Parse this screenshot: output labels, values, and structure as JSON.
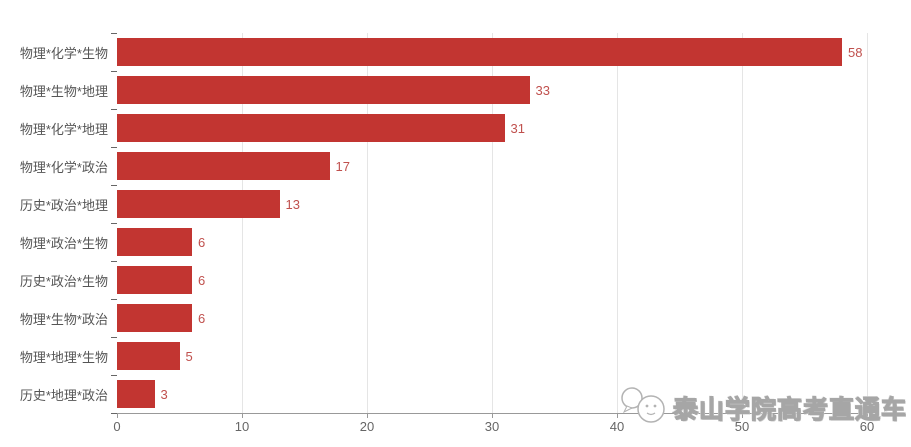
{
  "chart_data": {
    "type": "bar",
    "orientation": "horizontal",
    "title": "",
    "xlabel": "",
    "ylabel": "",
    "categories": [
      "物理*化学*生物",
      "物理*生物*地理",
      "物理*化学*地理",
      "物理*化学*政治",
      "历史*政治*地理",
      "物理*政治*生物",
      "历史*政治*生物",
      "物理*生物*政治",
      "物理*地理*生物",
      "历史*地理*政治"
    ],
    "values": [
      58,
      33,
      31,
      17,
      13,
      6,
      6,
      6,
      5,
      3
    ],
    "xticks": [
      0,
      10,
      20,
      30,
      40,
      50,
      60
    ],
    "xlim": [
      0,
      60
    ],
    "grid": true,
    "legend": "none",
    "colors": {
      "bar": "#c23531",
      "value_label": "#c0504d",
      "category_label": "#555555",
      "tick_label": "#666666",
      "gridline": "#e5e5e5",
      "axis_line": "#999999"
    }
  },
  "watermark": {
    "text": "泰山学院高考直通车",
    "logo": "mascot-chat-bubble-icon"
  }
}
